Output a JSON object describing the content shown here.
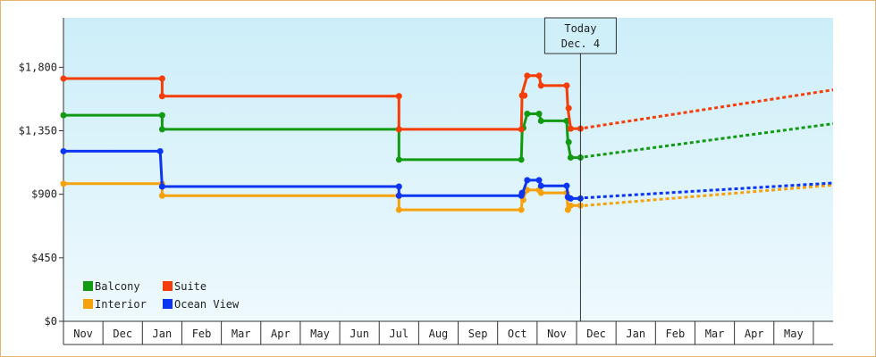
{
  "chart_data": {
    "type": "line",
    "y_ticks": [
      "$0",
      "$450",
      "$900",
      "$1,350",
      "$1,800"
    ],
    "ylim": [
      0,
      2150
    ],
    "month_labels": [
      "Nov",
      "Dec",
      "Jan",
      "Feb",
      "Mar",
      "Apr",
      "May",
      "Jun",
      "Jul",
      "Aug",
      "Sep",
      "Oct",
      "Nov",
      "Dec",
      "Jan",
      "Feb",
      "Mar",
      "Apr",
      "May"
    ],
    "x_range_months": [
      0,
      19.5
    ],
    "today": {
      "label": "Today",
      "date": "Dec. 4",
      "x": 13.1
    },
    "grid": false,
    "legend_placement": "bottom-left",
    "series": [
      {
        "name": "Balcony",
        "color": "#139a13",
        "points": [
          [
            0,
            1460
          ],
          [
            2.5,
            1460
          ],
          [
            2.5,
            1360
          ],
          [
            8.5,
            1360
          ],
          [
            8.5,
            1145
          ],
          [
            11.6,
            1145
          ],
          [
            11.62,
            1340
          ],
          [
            11.75,
            1470
          ],
          [
            12.05,
            1470
          ],
          [
            12.1,
            1420
          ],
          [
            12.75,
            1420
          ],
          [
            12.78,
            1270
          ],
          [
            12.85,
            1160
          ],
          [
            13.1,
            1160
          ]
        ],
        "markers": [
          [
            0,
            1460
          ],
          [
            2.5,
            1460
          ],
          [
            2.5,
            1360
          ],
          [
            8.5,
            1360
          ],
          [
            8.5,
            1145
          ],
          [
            11.6,
            1145
          ],
          [
            11.65,
            1370
          ],
          [
            11.75,
            1470
          ],
          [
            12.05,
            1470
          ],
          [
            12.1,
            1420
          ],
          [
            12.75,
            1420
          ],
          [
            12.8,
            1270
          ],
          [
            12.85,
            1160
          ],
          [
            13.1,
            1160
          ]
        ],
        "forecast": [
          [
            13.2,
            1165
          ],
          [
            19.5,
            1400
          ]
        ]
      },
      {
        "name": "Suite",
        "color": "#f43d07",
        "points": [
          [
            0,
            1720
          ],
          [
            2.5,
            1720
          ],
          [
            2.5,
            1595
          ],
          [
            8.5,
            1595
          ],
          [
            8.5,
            1360
          ],
          [
            11.6,
            1360
          ],
          [
            11.62,
            1615
          ],
          [
            11.75,
            1740
          ],
          [
            12.05,
            1740
          ],
          [
            12.1,
            1670
          ],
          [
            12.75,
            1670
          ],
          [
            12.78,
            1510
          ],
          [
            12.85,
            1365
          ],
          [
            13.1,
            1365
          ]
        ],
        "markers": [
          [
            0,
            1720
          ],
          [
            2.5,
            1720
          ],
          [
            2.5,
            1595
          ],
          [
            8.5,
            1595
          ],
          [
            8.5,
            1360
          ],
          [
            11.6,
            1360
          ],
          [
            11.62,
            1600
          ],
          [
            11.68,
            1600
          ],
          [
            11.75,
            1740
          ],
          [
            12.05,
            1740
          ],
          [
            12.1,
            1670
          ],
          [
            12.75,
            1670
          ],
          [
            12.8,
            1510
          ],
          [
            12.85,
            1365
          ],
          [
            13.1,
            1365
          ]
        ],
        "forecast": [
          [
            13.2,
            1370
          ],
          [
            19.5,
            1640
          ]
        ]
      },
      {
        "name": "Interior",
        "color": "#f5a20d",
        "points": [
          [
            0,
            975
          ],
          [
            2.5,
            975
          ],
          [
            2.5,
            890
          ],
          [
            8.5,
            890
          ],
          [
            8.5,
            790
          ],
          [
            11.6,
            790
          ],
          [
            11.62,
            860
          ],
          [
            11.75,
            930
          ],
          [
            12.05,
            930
          ],
          [
            12.1,
            910
          ],
          [
            12.75,
            910
          ],
          [
            12.78,
            790
          ],
          [
            12.85,
            820
          ],
          [
            13.1,
            820
          ]
        ],
        "markers": [
          [
            0,
            975
          ],
          [
            2.5,
            975
          ],
          [
            2.5,
            890
          ],
          [
            8.5,
            890
          ],
          [
            8.5,
            790
          ],
          [
            11.6,
            790
          ],
          [
            11.65,
            860
          ],
          [
            11.75,
            930
          ],
          [
            12.05,
            930
          ],
          [
            12.1,
            910
          ],
          [
            12.75,
            910
          ],
          [
            12.78,
            790
          ],
          [
            12.85,
            820
          ],
          [
            13.1,
            820
          ]
        ],
        "forecast": [
          [
            13.2,
            820
          ],
          [
            19.5,
            965
          ]
        ]
      },
      {
        "name": "Ocean View",
        "color": "#0b35f0",
        "points": [
          [
            0,
            1205
          ],
          [
            2.45,
            1205
          ],
          [
            2.5,
            955
          ],
          [
            8.5,
            955
          ],
          [
            8.5,
            890
          ],
          [
            11.6,
            890
          ],
          [
            11.62,
            900
          ],
          [
            11.75,
            1000
          ],
          [
            12.05,
            1000
          ],
          [
            12.1,
            960
          ],
          [
            12.75,
            960
          ],
          [
            12.78,
            890
          ],
          [
            12.85,
            870
          ],
          [
            13.1,
            870
          ]
        ],
        "markers": [
          [
            0,
            1205
          ],
          [
            2.45,
            1205
          ],
          [
            2.5,
            955
          ],
          [
            8.5,
            955
          ],
          [
            8.5,
            890
          ],
          [
            11.6,
            890
          ],
          [
            11.62,
            910
          ],
          [
            11.75,
            1000
          ],
          [
            12.05,
            1000
          ],
          [
            12.1,
            960
          ],
          [
            12.75,
            960
          ],
          [
            12.78,
            880
          ],
          [
            12.85,
            870
          ],
          [
            13.1,
            870
          ]
        ],
        "forecast": [
          [
            13.2,
            875
          ],
          [
            19.5,
            980
          ]
        ]
      }
    ]
  }
}
